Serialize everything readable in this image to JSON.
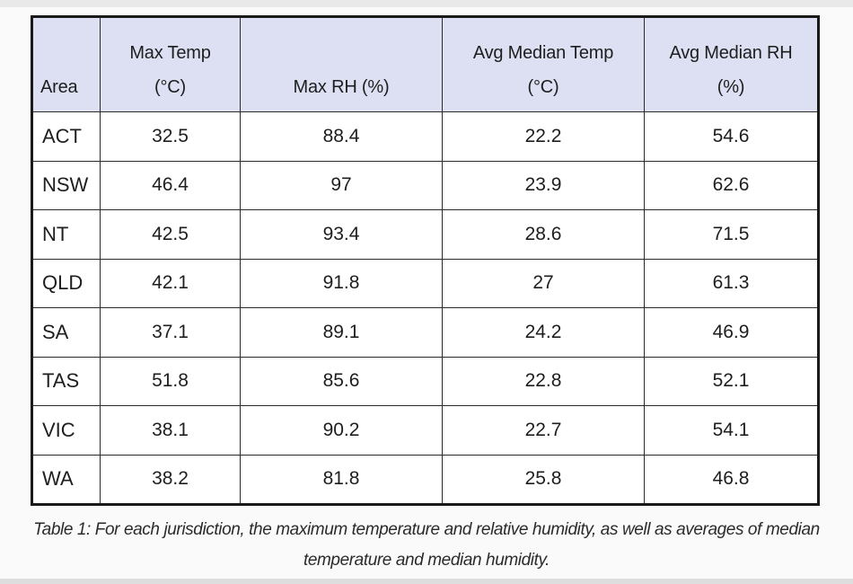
{
  "table": {
    "headers": {
      "area": "Area",
      "max_temp_line1": "Max Temp",
      "max_temp_line2": "(°C)",
      "max_rh": "Max RH (%)",
      "avg_temp_line1": "Avg Median Temp",
      "avg_temp_line2": "(°C)",
      "avg_rh_line1": "Avg Median RH",
      "avg_rh_line2": "(%)"
    },
    "rows": [
      {
        "area": "ACT",
        "max_temp": "32.5",
        "max_rh": "88.4",
        "avg_temp": "22.2",
        "avg_rh": "54.6"
      },
      {
        "area": "NSW",
        "max_temp": "46.4",
        "max_rh": "97",
        "avg_temp": "23.9",
        "avg_rh": "62.6"
      },
      {
        "area": "NT",
        "max_temp": "42.5",
        "max_rh": "93.4",
        "avg_temp": "28.6",
        "avg_rh": "71.5"
      },
      {
        "area": "QLD",
        "max_temp": "42.1",
        "max_rh": "91.8",
        "avg_temp": "27",
        "avg_rh": "61.3"
      },
      {
        "area": "SA",
        "max_temp": "37.1",
        "max_rh": "89.1",
        "avg_temp": "24.2",
        "avg_rh": "46.9"
      },
      {
        "area": "TAS",
        "max_temp": "51.8",
        "max_rh": "85.6",
        "avg_temp": "22.8",
        "avg_rh": "52.1"
      },
      {
        "area": "VIC",
        "max_temp": "38.1",
        "max_rh": "90.2",
        "avg_temp": "22.7",
        "avg_rh": "54.1"
      },
      {
        "area": "WA",
        "max_temp": "38.2",
        "max_rh": "81.8",
        "avg_temp": "25.8",
        "avg_rh": "46.8"
      }
    ]
  },
  "caption": {
    "line1": "Table 1: For each jurisdiction, the maximum temperature and relative humidity, as well as averages of median",
    "line2": "temperature and median humidity."
  },
  "colors": {
    "header_background": "#dce0f2",
    "border": "#1a1a1a"
  }
}
